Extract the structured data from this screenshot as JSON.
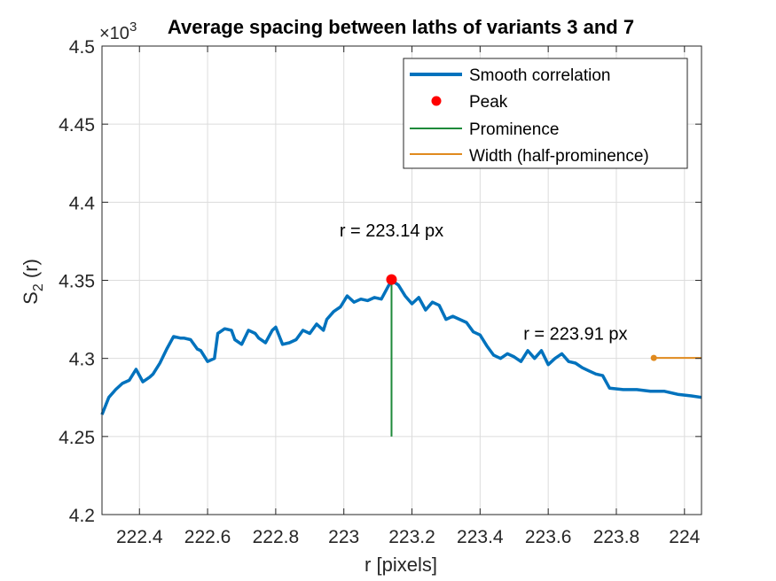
{
  "chart_data": {
    "type": "line",
    "title": "Average spacing between laths of variants 3 and 7",
    "xlabel": "r [pixels]",
    "ylabel": "S",
    "ylabel_sub": "2",
    "ylabel_suffix": " (r)",
    "exponent_label": "×10",
    "exponent_power": "3",
    "xlim": [
      222.29,
      224.05
    ],
    "ylim": [
      4.2,
      4.5
    ],
    "x_ticks": [
      222.4,
      222.6,
      222.8,
      223,
      223.2,
      223.4,
      223.6,
      223.8,
      224
    ],
    "x_tick_labels": [
      "222.4",
      "222.6",
      "222.8",
      "223",
      "223.2",
      "223.4",
      "223.6",
      "223.8",
      "224"
    ],
    "y_ticks": [
      4.2,
      4.25,
      4.3,
      4.35,
      4.4,
      4.45,
      4.5
    ],
    "y_tick_labels": [
      "4.2",
      "4.25",
      "4.3",
      "4.35",
      "4.4",
      "4.45",
      "4.5"
    ],
    "grid": true,
    "legend_position": "top-right",
    "series": [
      {
        "name": "Smooth correlation",
        "color": "#0072BD",
        "x": [
          222.29,
          222.31,
          222.33,
          222.35,
          222.37,
          222.39,
          222.41,
          222.43,
          222.44,
          222.46,
          222.48,
          222.5,
          222.52,
          222.53,
          222.55,
          222.57,
          222.58,
          222.6,
          222.62,
          222.63,
          222.65,
          222.67,
          222.68,
          222.7,
          222.72,
          222.74,
          222.75,
          222.77,
          222.79,
          222.8,
          222.82,
          222.84,
          222.86,
          222.88,
          222.9,
          222.92,
          222.94,
          222.95,
          222.97,
          222.99,
          223.01,
          223.03,
          223.05,
          223.07,
          223.09,
          223.11,
          223.13,
          223.14,
          223.16,
          223.18,
          223.2,
          223.22,
          223.24,
          223.26,
          223.28,
          223.3,
          223.32,
          223.34,
          223.36,
          223.38,
          223.4,
          223.42,
          223.44,
          223.46,
          223.48,
          223.5,
          223.52,
          223.54,
          223.56,
          223.58,
          223.6,
          223.62,
          223.64,
          223.66,
          223.68,
          223.7,
          223.72,
          223.74,
          223.76,
          223.78,
          223.82,
          223.86,
          223.9,
          223.94,
          223.98,
          224.02,
          224.05
        ],
        "y": [
          4.264,
          4.275,
          4.28,
          4.284,
          4.286,
          4.293,
          4.285,
          4.288,
          4.29,
          4.297,
          4.306,
          4.314,
          4.313,
          4.313,
          4.312,
          4.306,
          4.305,
          4.298,
          4.3,
          4.316,
          4.319,
          4.318,
          4.312,
          4.309,
          4.318,
          4.316,
          4.313,
          4.31,
          4.318,
          4.32,
          4.309,
          4.31,
          4.312,
          4.318,
          4.316,
          4.322,
          4.318,
          4.325,
          4.33,
          4.333,
          4.34,
          4.336,
          4.338,
          4.337,
          4.339,
          4.338,
          4.346,
          4.35,
          4.347,
          4.34,
          4.335,
          4.339,
          4.331,
          4.336,
          4.334,
          4.325,
          4.327,
          4.325,
          4.323,
          4.317,
          4.315,
          4.308,
          4.302,
          4.3,
          4.303,
          4.301,
          4.298,
          4.305,
          4.3,
          4.305,
          4.296,
          4.3,
          4.303,
          4.298,
          4.297,
          4.294,
          4.292,
          4.29,
          4.289,
          4.281,
          4.28,
          4.28,
          4.279,
          4.279,
          4.277,
          4.276,
          4.275
        ]
      },
      {
        "name": "Peak",
        "color": "#FF0000",
        "x": [
          223.14
        ],
        "y": [
          4.3505
        ]
      },
      {
        "name": "Prominence",
        "color": "#1E8A3A",
        "x": [
          223.14,
          223.14
        ],
        "y": [
          4.3505,
          4.25
        ]
      },
      {
        "name": "Width (half-prominence)",
        "color": "#E08A1E",
        "x": [
          223.91,
          224.05
        ],
        "y": [
          4.3003,
          4.3003
        ]
      }
    ],
    "annotations": [
      {
        "text": "r = 223.14 px",
        "x": 223.14,
        "y": 4.378
      },
      {
        "text": "r = 223.91 px",
        "x": 223.68,
        "y": 4.312
      }
    ]
  }
}
